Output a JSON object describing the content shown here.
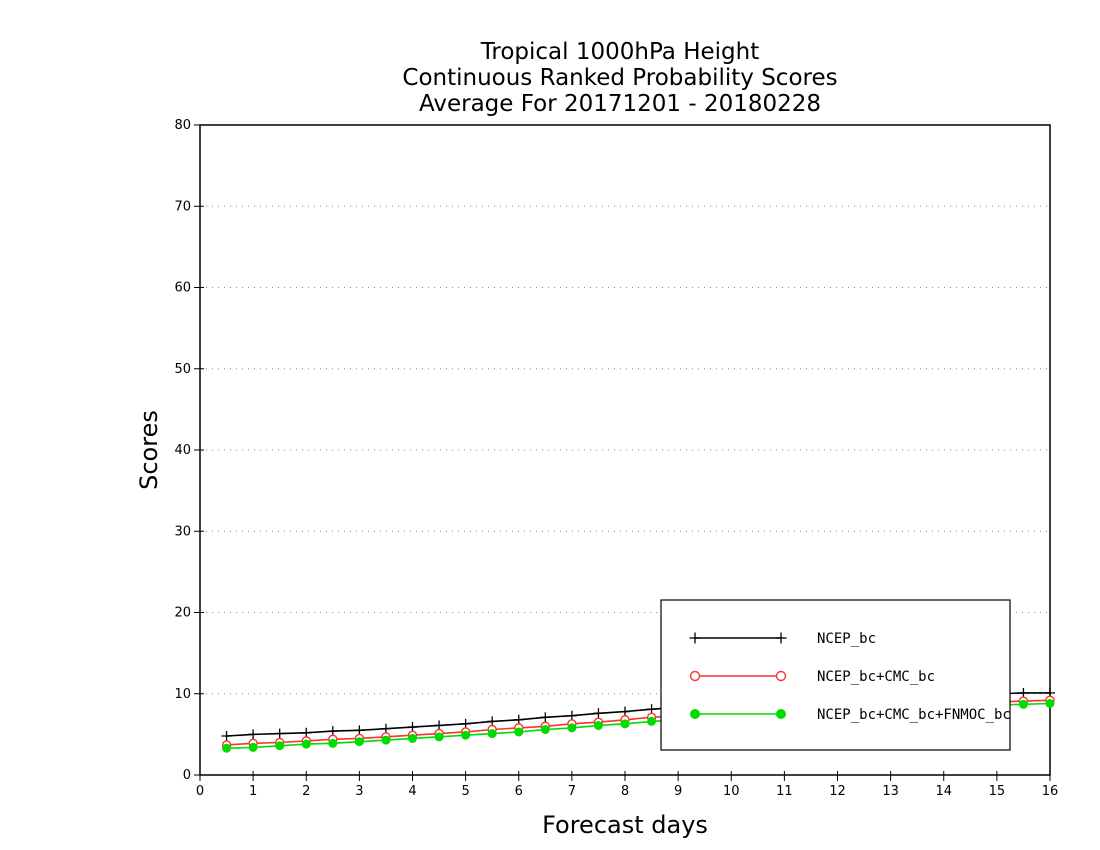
{
  "chart_data": {
    "type": "line",
    "title": [
      "Tropical 1000hPa Height",
      "Continuous Ranked Probability Scores",
      "Average For 20171201 - 20180228"
    ],
    "xlabel": "Forecast days",
    "ylabel": "Scores",
    "xlim": [
      0,
      16
    ],
    "ylim": [
      0,
      80
    ],
    "xticks": [
      0,
      1,
      2,
      3,
      4,
      5,
      6,
      7,
      8,
      9,
      10,
      11,
      12,
      13,
      14,
      15,
      16
    ],
    "yticks": [
      0,
      10,
      20,
      30,
      40,
      50,
      60,
      70,
      80
    ],
    "grid": "horizontal-dotted",
    "legend_position": "bottom-right",
    "x": [
      0.5,
      1,
      1.5,
      2,
      2.5,
      3,
      3.5,
      4,
      4.5,
      5,
      5.5,
      6,
      6.5,
      7,
      7.5,
      8,
      8.5,
      9,
      9.5,
      10,
      10.5,
      11,
      11.5,
      12,
      12.5,
      13,
      13.5,
      14,
      14.5,
      15,
      15.5,
      16
    ],
    "series": [
      {
        "name": "NCEP_bc",
        "color": "#000000",
        "marker": "plus",
        "values": [
          4.8,
          5.0,
          5.1,
          5.2,
          5.4,
          5.5,
          5.7,
          5.9,
          6.1,
          6.3,
          6.6,
          6.8,
          7.1,
          7.3,
          7.6,
          7.8,
          8.1,
          8.3,
          8.5,
          8.7,
          8.9,
          9.0,
          9.2,
          9.3,
          9.5,
          9.6,
          9.7,
          9.8,
          9.9,
          10.0,
          10.1,
          10.1
        ]
      },
      {
        "name": "NCEP_bc+CMC_bc",
        "color": "#ff3030",
        "marker": "open-circle",
        "values": [
          3.7,
          3.9,
          4.0,
          4.2,
          4.4,
          4.5,
          4.7,
          4.9,
          5.1,
          5.3,
          5.6,
          5.8,
          6.0,
          6.3,
          6.5,
          6.8,
          7.1,
          7.3,
          7.5,
          7.7,
          7.9,
          8.1,
          8.2,
          8.4,
          8.5,
          8.6,
          8.7,
          8.8,
          8.9,
          9.0,
          9.1,
          9.2
        ]
      },
      {
        "name": "NCEP_bc+CMC_bc+FNMOC_bc",
        "color": "#00dc00",
        "marker": "filled-circle",
        "values": [
          3.3,
          3.4,
          3.6,
          3.8,
          3.9,
          4.1,
          4.3,
          4.5,
          4.7,
          4.9,
          5.1,
          5.3,
          5.6,
          5.8,
          6.1,
          6.3,
          6.6,
          6.8,
          7.0,
          7.2,
          7.4,
          7.6,
          7.8,
          7.9,
          8.1,
          8.2,
          8.3,
          8.4,
          8.5,
          8.6,
          8.7,
          8.8
        ]
      }
    ]
  }
}
